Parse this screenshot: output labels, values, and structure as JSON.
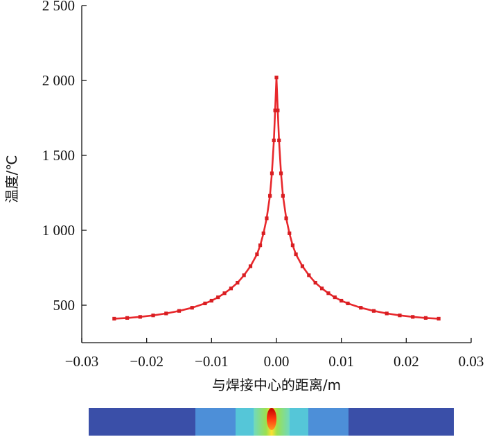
{
  "chart_data": {
    "type": "line",
    "title": "",
    "xlabel": "与焊接中心的距离/m",
    "ylabel": "温度/℃",
    "xlim": [
      -0.03,
      0.03
    ],
    "ylim": [
      250,
      2500
    ],
    "x_ticks": [
      -0.03,
      -0.02,
      -0.01,
      0.0,
      0.01,
      0.02,
      0.03
    ],
    "x_tick_labels": [
      "−0.03",
      "−0.02",
      "−0.01",
      "0.00",
      "0.01",
      "0.02",
      "0.03"
    ],
    "y_ticks": [
      500,
      1000,
      1500,
      2000,
      2500
    ],
    "y_tick_labels": [
      "500",
      "1 000",
      "1 500",
      "2 000",
      "2 500"
    ],
    "grid": false,
    "legend": "none",
    "colors": {
      "line": "#e8282c",
      "marker": "#d81e22",
      "axis": "#111111"
    },
    "series": [
      {
        "values_note": "",
        "x": [
          -0.025,
          -0.023,
          -0.021,
          -0.019,
          -0.017,
          -0.015,
          -0.013,
          -0.011,
          -0.01,
          -0.009,
          -0.008,
          -0.007,
          -0.006,
          -0.005,
          -0.004,
          -0.003,
          -0.0025,
          -0.002,
          -0.0015,
          -0.001,
          -0.0007,
          -0.0004,
          -0.0002,
          0.0,
          0.0002,
          0.0004,
          0.0007,
          0.001,
          0.0015,
          0.002,
          0.0025,
          0.003,
          0.004,
          0.005,
          0.006,
          0.007,
          0.008,
          0.009,
          0.01,
          0.011,
          0.013,
          0.015,
          0.017,
          0.019,
          0.021,
          0.023,
          0.025
        ],
        "y": [
          410,
          415,
          422,
          432,
          445,
          462,
          483,
          512,
          530,
          553,
          580,
          612,
          650,
          700,
          760,
          840,
          900,
          980,
          1080,
          1230,
          1380,
          1600,
          1800,
          2020,
          1800,
          1600,
          1380,
          1230,
          1080,
          980,
          900,
          840,
          760,
          700,
          650,
          612,
          580,
          553,
          530,
          512,
          483,
          462,
          445,
          432,
          422,
          415,
          410
        ]
      }
    ]
  },
  "inset": {
    "name": "temperature-field-contour"
  }
}
